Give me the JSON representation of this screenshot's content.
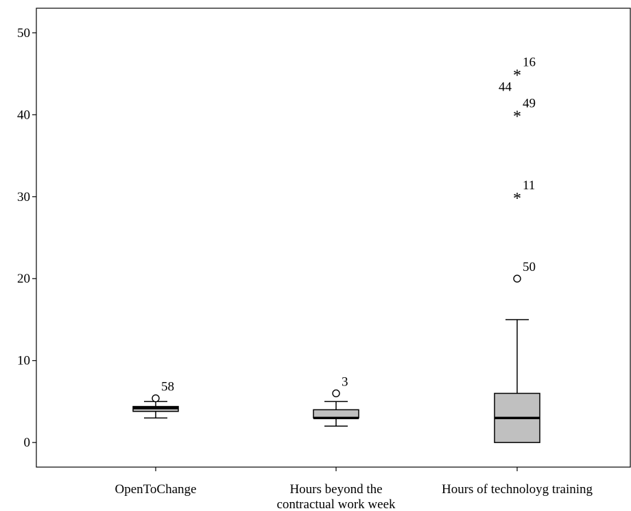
{
  "chart_data": {
    "type": "boxplot",
    "title": "",
    "xlabel": "",
    "ylabel": "",
    "ylim": [
      -3,
      53
    ],
    "yticks": [
      0,
      10,
      20,
      30,
      40,
      50
    ],
    "grid": false,
    "box_color": "#c0c0c0",
    "categories": [
      {
        "label_lines": [
          "OpenToChange"
        ],
        "whisker_low": 3,
        "q1": 3.8,
        "median": 4.2,
        "q3": 4.4,
        "whisker_high": 5,
        "outliers": [
          {
            "value": 5.4,
            "marker": "circle",
            "label": "58"
          }
        ]
      },
      {
        "label_lines": [
          "Hours beyond the",
          "contractual work week"
        ],
        "whisker_low": 2,
        "q1": 3,
        "median": 3,
        "q3": 4,
        "whisker_high": 5,
        "outliers": [
          {
            "value": 6,
            "marker": "circle",
            "label": "3"
          }
        ]
      },
      {
        "label_lines": [
          "Hours of technoloyg training"
        ],
        "whisker_low": 0,
        "q1": 0,
        "median": 3,
        "q3": 6,
        "whisker_high": 15,
        "outliers": [
          {
            "value": 20,
            "marker": "circle",
            "label": "50"
          },
          {
            "value": 30,
            "marker": "star",
            "label": "11"
          },
          {
            "value": 40,
            "marker": "star",
            "label": "49"
          },
          {
            "value": 45,
            "marker": "star",
            "label": "16"
          },
          {
            "value": 45,
            "marker": "star",
            "label": "44"
          }
        ]
      }
    ]
  }
}
